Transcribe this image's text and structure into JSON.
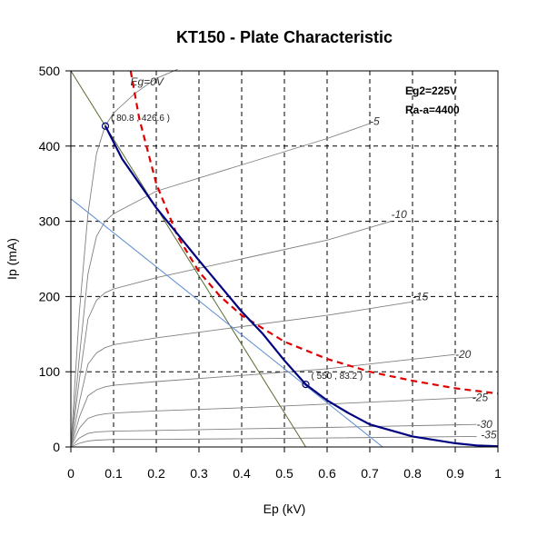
{
  "chart_data": {
    "type": "line",
    "title": "KT150 - Plate Characteristic",
    "xlabel": "Ep (kV)",
    "ylabel": "Ip (mA)",
    "xlim": [
      0,
      1
    ],
    "ylim": [
      0,
      500
    ],
    "xticks": [
      "0",
      "0.1",
      "0.2",
      "0.3",
      "0.4",
      "0.5",
      "0.6",
      "0.7",
      "0.8",
      "0.9",
      "1"
    ],
    "yticks": [
      "0",
      "100",
      "200",
      "300",
      "400",
      "500"
    ],
    "grid": true,
    "parameters": [
      "Eg2=225V",
      "Ra-a=4400"
    ],
    "grid_curves": [
      {
        "label": "Eg=0V",
        "color": "#808080",
        "x": [
          0,
          0.02,
          0.04,
          0.06,
          0.08,
          0.1,
          0.15,
          0.2,
          0.25
        ],
        "y": [
          0,
          180,
          310,
          390,
          426.6,
          444,
          470,
          490,
          510
        ]
      },
      {
        "label": "-5",
        "color": "#808080",
        "x": [
          0,
          0.02,
          0.04,
          0.06,
          0.08,
          0.1,
          0.2,
          0.4,
          0.6,
          0.7
        ],
        "y": [
          0,
          120,
          230,
          280,
          300,
          310,
          340,
          375,
          410,
          430
        ]
      },
      {
        "label": "-10",
        "color": "#808080",
        "x": [
          0,
          0.02,
          0.04,
          0.06,
          0.08,
          0.1,
          0.2,
          0.4,
          0.6,
          0.75
        ],
        "y": [
          0,
          90,
          170,
          195,
          205,
          210,
          225,
          250,
          275,
          300
        ]
      },
      {
        "label": "-15",
        "color": "#808080",
        "x": [
          0,
          0.02,
          0.04,
          0.06,
          0.08,
          0.1,
          0.2,
          0.4,
          0.6,
          0.8
        ],
        "y": [
          0,
          60,
          110,
          125,
          132,
          136,
          145,
          160,
          175,
          193
        ]
      },
      {
        "label": "-20",
        "color": "#808080",
        "x": [
          0,
          0.02,
          0.04,
          0.06,
          0.08,
          0.1,
          0.2,
          0.4,
          0.6,
          0.9
        ],
        "y": [
          0,
          40,
          68,
          76,
          80,
          82,
          87,
          95,
          104,
          123
        ]
      },
      {
        "label": "-25",
        "color": "#808080",
        "x": [
          0,
          0.02,
          0.04,
          0.06,
          0.08,
          0.1,
          0.2,
          0.4,
          0.6,
          0.95
        ],
        "y": [
          0,
          25,
          38,
          42,
          44,
          45,
          48,
          52,
          57,
          66
        ]
      },
      {
        "label": "-30",
        "color": "#808080",
        "x": [
          0,
          0.02,
          0.04,
          0.06,
          0.1,
          0.2,
          0.4,
          0.6,
          0.95
        ],
        "y": [
          0,
          12,
          18,
          20,
          21,
          22,
          24,
          26,
          30
        ]
      },
      {
        "label": "-35",
        "color": "#808080",
        "x": [
          0,
          0.02,
          0.04,
          0.06,
          0.1,
          0.2,
          0.4,
          0.6,
          0.95
        ],
        "y": [
          0,
          5,
          8,
          9,
          10,
          10,
          11,
          12,
          14
        ]
      }
    ],
    "load_curve": {
      "color": "#000080",
      "x": [
        0.0808,
        0.12,
        0.2,
        0.3,
        0.4,
        0.45,
        0.5,
        0.55,
        0.6,
        0.65,
        0.7,
        0.8,
        0.9,
        0.95,
        1.0
      ],
      "y": [
        426.6,
        383,
        318,
        248,
        180,
        150,
        115,
        83.2,
        62,
        45,
        30,
        14,
        5,
        2,
        1
      ]
    },
    "dissipation_curve": {
      "color": "#dd0000",
      "x": [
        0.14,
        0.16,
        0.2,
        0.25,
        0.3,
        0.35,
        0.4,
        0.5,
        0.6,
        0.7,
        0.8,
        0.9,
        1.0
      ],
      "y": [
        500,
        437,
        350,
        280,
        233,
        200,
        175,
        140,
        117,
        100,
        88,
        78,
        71
      ]
    },
    "load_lines": [
      {
        "color": "#556b2f",
        "x": [
          0,
          0.55
        ],
        "y": [
          500,
          0
        ]
      },
      {
        "color": "#5b8fd0",
        "x": [
          0,
          0.73
        ],
        "y": [
          330,
          0
        ]
      }
    ],
    "points": [
      {
        "label": "( 80.8 , 426.6 )",
        "x": 0.0808,
        "y": 426.6
      },
      {
        "label": "( 550 , 83.2 )",
        "x": 0.55,
        "y": 83.2
      }
    ]
  }
}
